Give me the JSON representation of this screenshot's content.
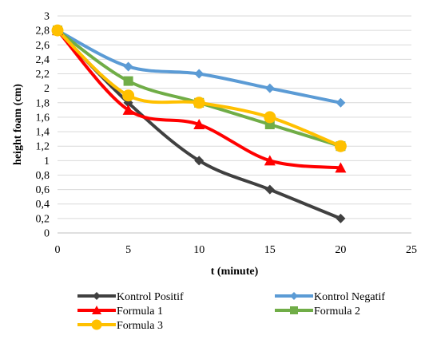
{
  "chart_data": {
    "type": "line",
    "title": "",
    "xlabel": "t (minute)",
    "ylabel": "height foam (cm)",
    "xlim": [
      0,
      25
    ],
    "ylim": [
      0,
      3
    ],
    "x_ticks": [
      "0",
      "5",
      "10",
      "15",
      "20",
      "25"
    ],
    "y_ticks": [
      "0",
      "0,2",
      "0,4",
      "0,6",
      "0,8",
      "1",
      "1,2",
      "1,4",
      "1,6",
      "1,8",
      "2",
      "2,2",
      "2,4",
      "2,6",
      "2,8",
      "3"
    ],
    "grid": "horizontal",
    "legend_position": "bottom",
    "smooth": true,
    "series": [
      {
        "name": "Kontrol Positif",
        "color": "#404040",
        "marker": "diamond",
        "x": [
          0,
          5,
          10,
          15,
          20
        ],
        "y": [
          2.8,
          1.8,
          1.0,
          0.6,
          0.2
        ]
      },
      {
        "name": "Kontrol Negatif",
        "color": "#5B9BD5",
        "marker": "diamond",
        "x": [
          0,
          5,
          10,
          15,
          20
        ],
        "y": [
          2.8,
          2.3,
          2.2,
          2.0,
          1.8
        ]
      },
      {
        "name": "Formula 1",
        "color": "#FF0000",
        "marker": "triangle",
        "x": [
          0,
          5,
          10,
          15,
          20
        ],
        "y": [
          2.8,
          1.7,
          1.5,
          1.0,
          0.9
        ]
      },
      {
        "name": "Formula 2",
        "color": "#70AD47",
        "marker": "square",
        "x": [
          0,
          5,
          10,
          15,
          20
        ],
        "y": [
          2.8,
          2.1,
          1.8,
          1.5,
          1.2
        ]
      },
      {
        "name": "Formula 3",
        "color": "#FFC000",
        "marker": "circle",
        "x": [
          0,
          5,
          10,
          15,
          20
        ],
        "y": [
          2.8,
          1.9,
          1.8,
          1.6,
          1.2
        ]
      }
    ]
  }
}
